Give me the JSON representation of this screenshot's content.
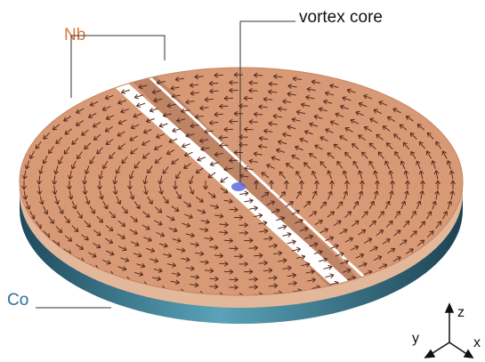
{
  "labels": {
    "nb": "Nb",
    "vortex_core": "vortex core",
    "co": "Co"
  },
  "axes": {
    "z": "z",
    "y": "y",
    "x": "x"
  }
}
